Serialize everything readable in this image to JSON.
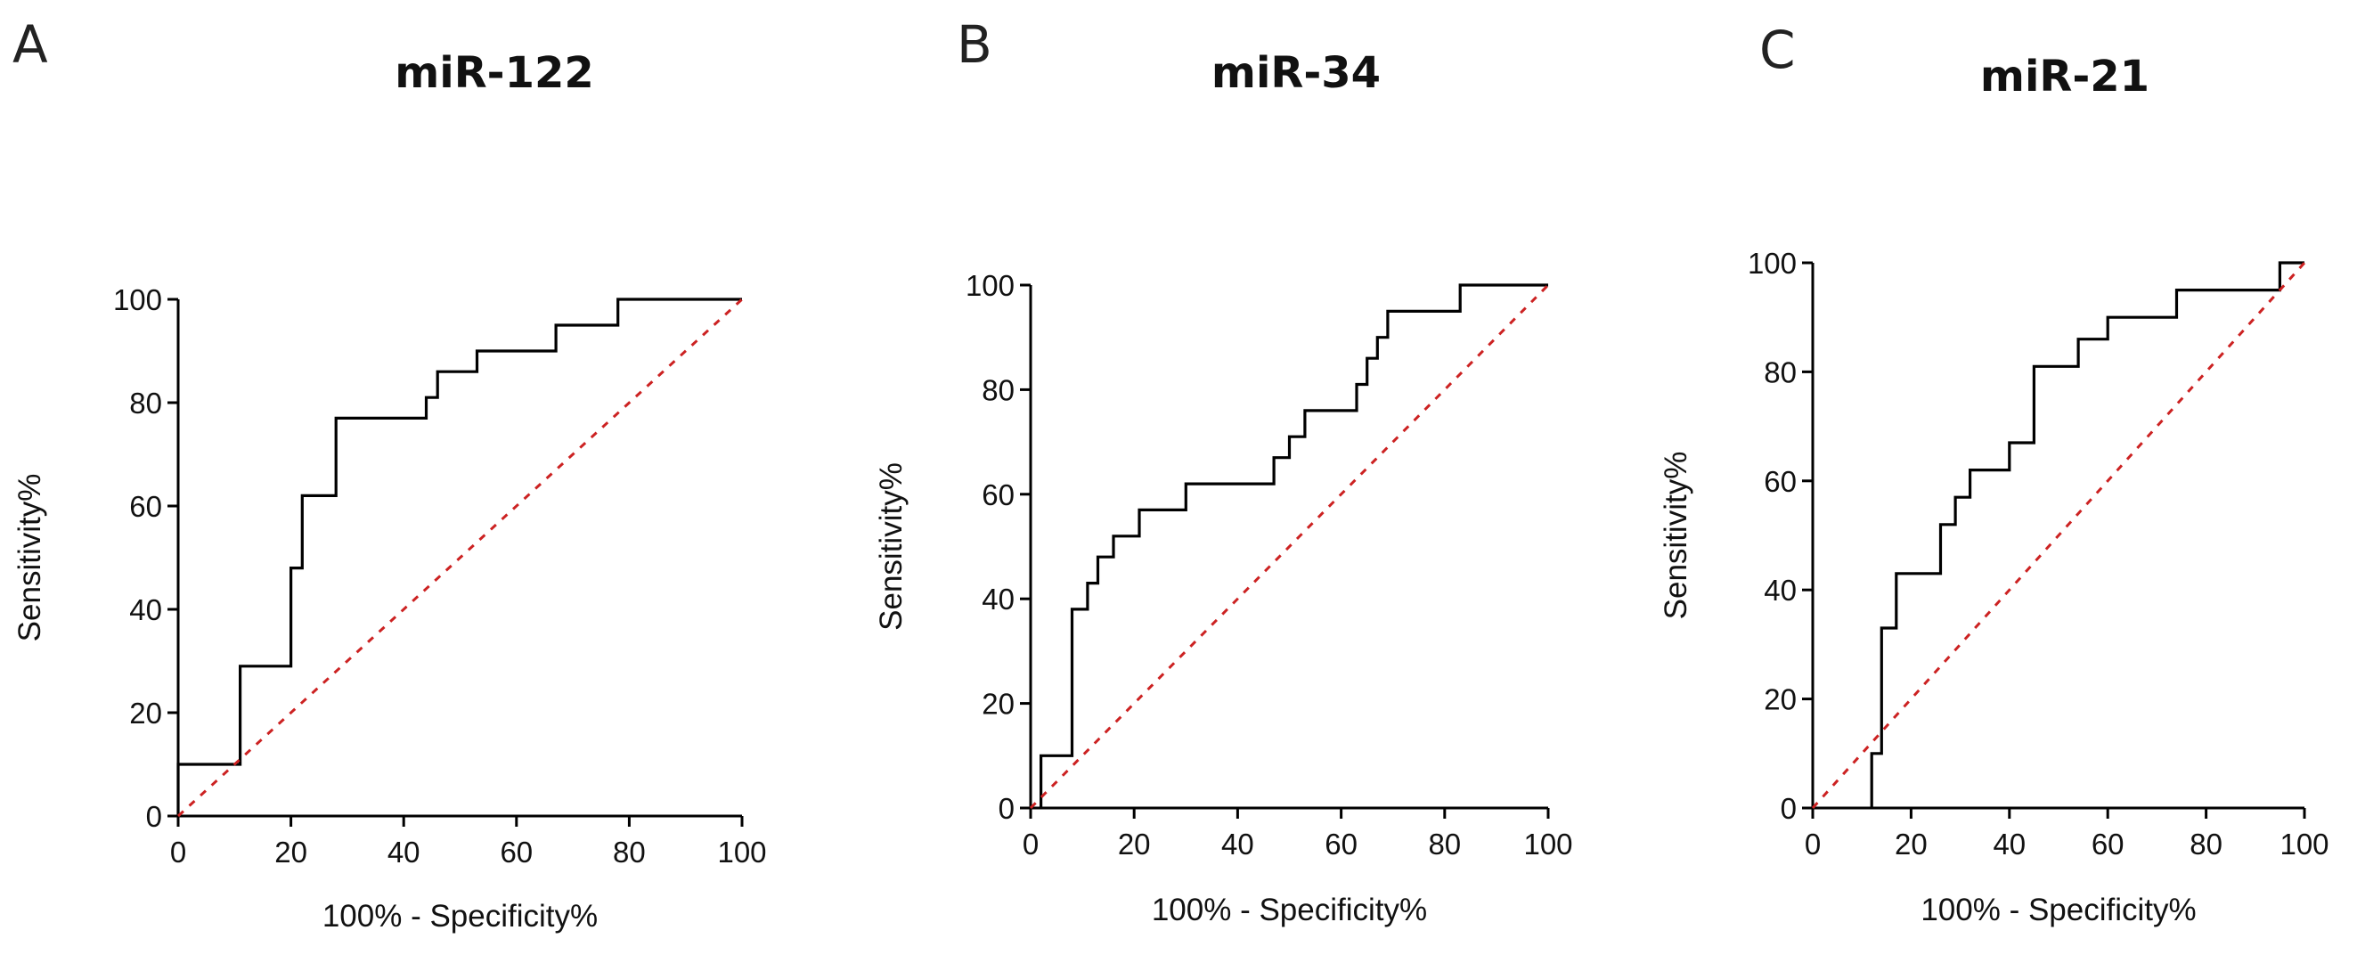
{
  "colors": {
    "roc": "#000000",
    "reference": "#cc2222",
    "text": "#111111",
    "background": "#ffffff"
  },
  "chart_data": [
    {
      "type": "line",
      "panel_letter": "A",
      "title": "miR-122",
      "xlabel": "100% - Specificity%",
      "ylabel": "Sensitivity%",
      "xlim": [
        0,
        100
      ],
      "ylim": [
        0,
        100
      ],
      "xticks": [
        "0",
        "20",
        "40",
        "60",
        "80",
        "100"
      ],
      "yticks": [
        "0",
        "20",
        "40",
        "60",
        "80",
        "100"
      ],
      "series": [
        {
          "name": "ROC curve",
          "style": "solid",
          "x": [
            0,
            0,
            11,
            11,
            20,
            20,
            22,
            22,
            28,
            28,
            44,
            44,
            46,
            46,
            49,
            49,
            53,
            53,
            67,
            67,
            78,
            78,
            100
          ],
          "y": [
            0,
            10,
            10,
            29,
            29,
            48,
            48,
            62,
            62,
            77,
            77,
            81,
            81,
            86,
            86,
            86,
            86,
            90,
            90,
            95,
            95,
            100,
            100
          ]
        },
        {
          "name": "Reference line",
          "style": "dotted",
          "x": [
            0,
            100
          ],
          "y": [
            0,
            100
          ]
        }
      ]
    },
    {
      "type": "line",
      "panel_letter": "B",
      "title": "miR-34",
      "xlabel": "100% - Specificity%",
      "ylabel": "Sensitivity%",
      "xlim": [
        0,
        100
      ],
      "ylim": [
        0,
        100
      ],
      "xticks": [
        "0",
        "20",
        "40",
        "60",
        "80",
        "100"
      ],
      "yticks": [
        "0",
        "20",
        "40",
        "60",
        "80",
        "100"
      ],
      "series": [
        {
          "name": "ROC curve",
          "style": "solid",
          "x": [
            2,
            2,
            8,
            8,
            11,
            11,
            13,
            13,
            16,
            16,
            21,
            21,
            30,
            30,
            47,
            47,
            50,
            50,
            53,
            53,
            63,
            63,
            65,
            65,
            67,
            67,
            69,
            69,
            83,
            83,
            100
          ],
          "y": [
            0,
            10,
            10,
            38,
            38,
            43,
            43,
            48,
            48,
            52,
            52,
            57,
            57,
            62,
            62,
            67,
            67,
            71,
            71,
            76,
            76,
            81,
            81,
            86,
            86,
            90,
            90,
            95,
            95,
            100,
            100
          ]
        },
        {
          "name": "Reference line",
          "style": "dotted",
          "x": [
            0,
            100
          ],
          "y": [
            0,
            100
          ]
        }
      ]
    },
    {
      "type": "line",
      "panel_letter": "C",
      "title": "miR-21",
      "xlabel": "100% - Specificity%",
      "ylabel": "Sensitivity%",
      "xlim": [
        0,
        100
      ],
      "ylim": [
        0,
        100
      ],
      "xticks": [
        "0",
        "20",
        "40",
        "60",
        "80",
        "100"
      ],
      "yticks": [
        "0",
        "20",
        "40",
        "60",
        "80",
        "100"
      ],
      "series": [
        {
          "name": "ROC curve",
          "style": "solid",
          "x": [
            12,
            12,
            14,
            14,
            17,
            17,
            26,
            26,
            29,
            29,
            32,
            32,
            40,
            40,
            45,
            45,
            54,
            54,
            60,
            60,
            74,
            74,
            95,
            95,
            100
          ],
          "y": [
            0,
            10,
            10,
            33,
            33,
            43,
            43,
            52,
            52,
            57,
            57,
            62,
            62,
            67,
            67,
            81,
            81,
            86,
            86,
            90,
            90,
            95,
            95,
            100,
            100
          ]
        },
        {
          "name": "Reference line",
          "style": "dotted",
          "x": [
            0,
            100
          ],
          "y": [
            0,
            100
          ]
        }
      ]
    }
  ]
}
